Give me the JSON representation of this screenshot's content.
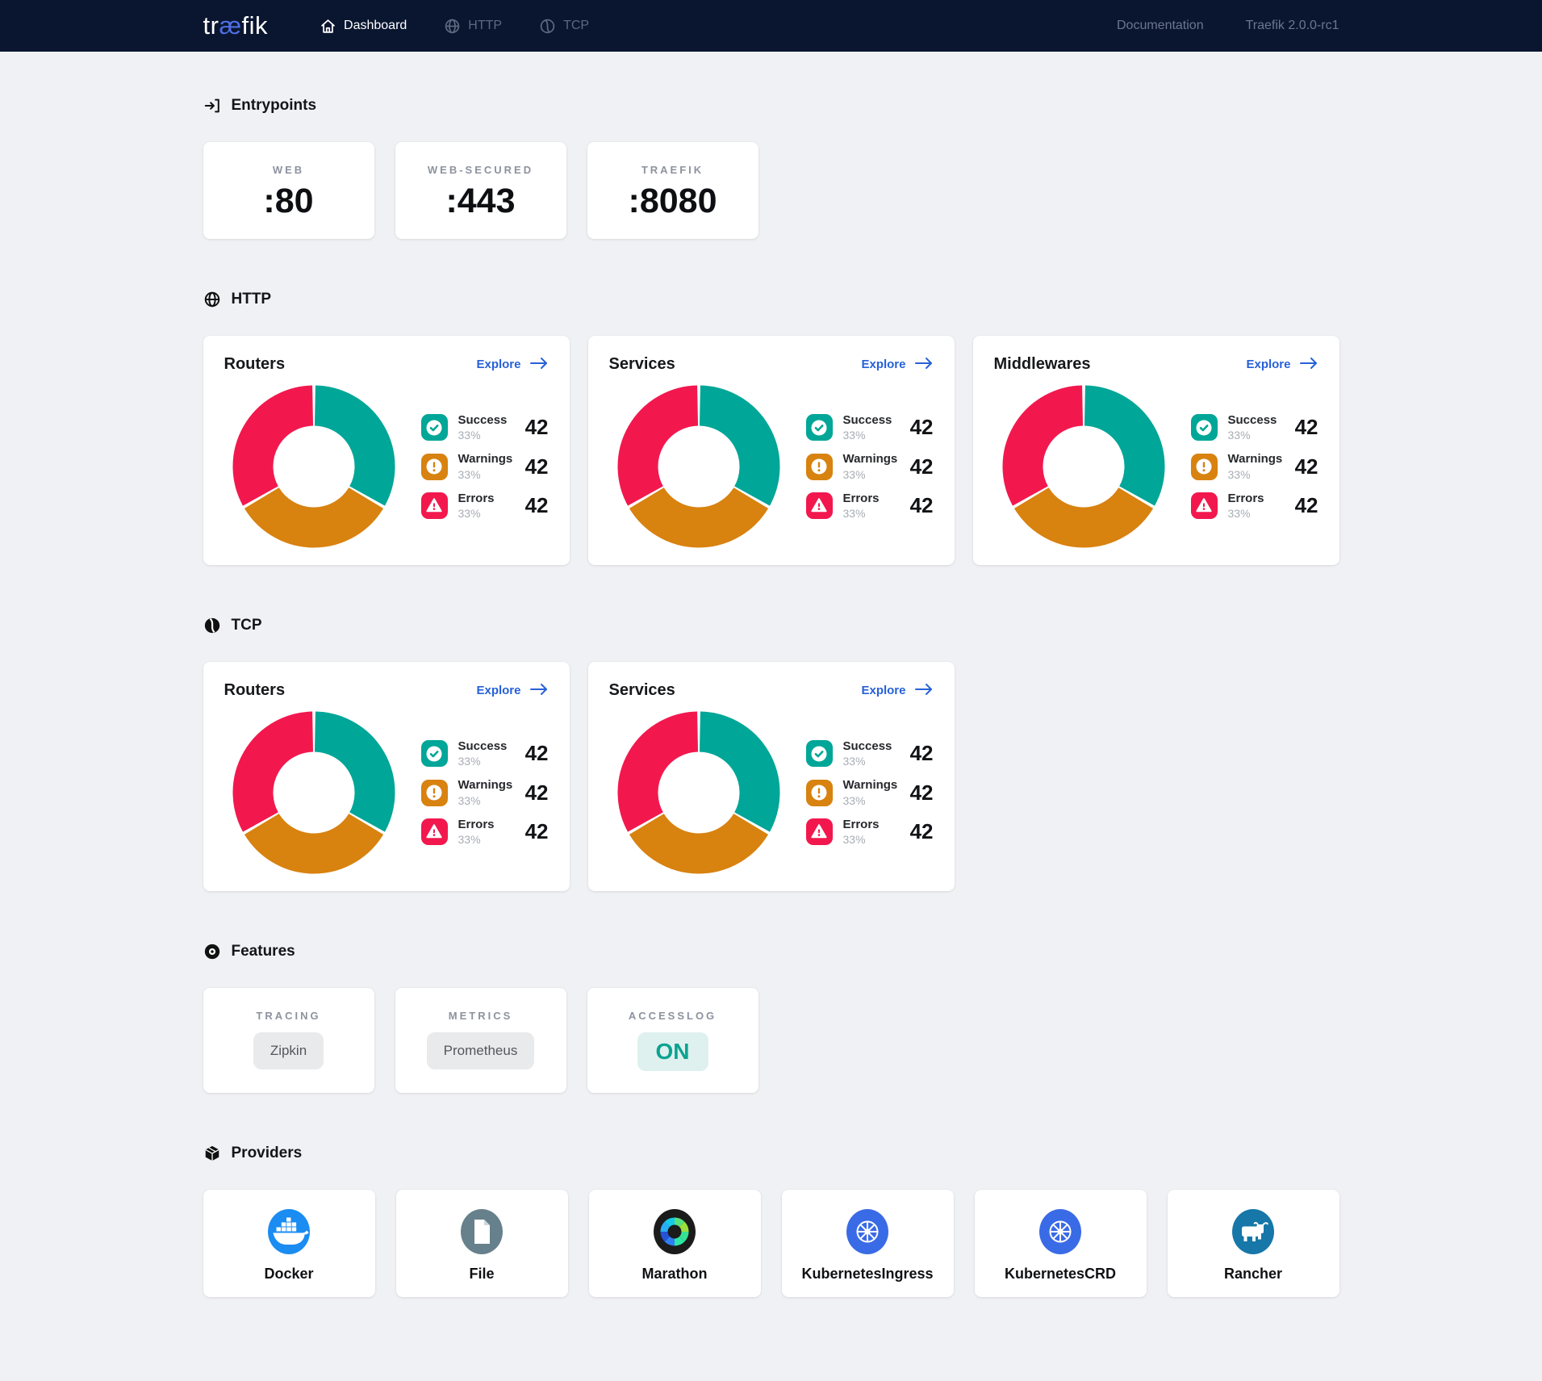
{
  "navbar": {
    "logo_pre": "tr",
    "logo_accent": "æ",
    "logo_post": "fik",
    "items": [
      {
        "label": "Dashboard",
        "icon": "home-icon",
        "active": true
      },
      {
        "label": "HTTP",
        "icon": "globe-icon",
        "active": false
      },
      {
        "label": "TCP",
        "icon": "tcp-icon",
        "active": false
      }
    ],
    "right": [
      {
        "label": "Documentation"
      },
      {
        "label": "Traefik 2.0.0-rc1"
      }
    ]
  },
  "colors": {
    "navbar_bg": "#0a1630",
    "logo_accent": "#4f6fe6",
    "accent": "#2761d8",
    "success": "#00a697",
    "warning": "#d8820f",
    "error": "#f2184e",
    "on_bg": "#def1ee",
    "on_text": "#0ba391",
    "pill_bg": "#e9eaec",
    "pill_text": "#54575d",
    "docker_blue": "#1a8cf2",
    "file_gray": "#66808c",
    "kubernetes_blue": "#3a6be6",
    "rancher_blue": "#1677a8",
    "marathon_black": "#1b1b1b"
  },
  "sections": {
    "entrypoints": {
      "heading": "Entrypoints",
      "icon": "login-icon",
      "cards": [
        {
          "label": "WEB",
          "value": ":80"
        },
        {
          "label": "WEB-SECURED",
          "value": ":443"
        },
        {
          "label": "TRAEFIK",
          "value": ":8080"
        }
      ]
    },
    "http": {
      "heading": "HTTP",
      "icon": "globe-icon"
    },
    "tcp": {
      "heading": "TCP",
      "icon": "tcp-icon"
    },
    "features": {
      "heading": "Features",
      "icon": "record-icon",
      "cards": [
        {
          "label": "TRACING",
          "value": "Zipkin",
          "style": "gray"
        },
        {
          "label": "METRICS",
          "value": "Prometheus",
          "style": "gray"
        },
        {
          "label": "ACCESSLOG",
          "value": "ON",
          "style": "teal"
        }
      ]
    },
    "providers": {
      "heading": "Providers",
      "icon": "package-icon",
      "cards": [
        {
          "name": "Docker",
          "icon": "docker-logo"
        },
        {
          "name": "File",
          "icon": "file-logo"
        },
        {
          "name": "Marathon",
          "icon": "marathon-logo"
        },
        {
          "name": "KubernetesIngress",
          "icon": "kubernetes-logo"
        },
        {
          "name": "KubernetesCRD",
          "icon": "kubernetes-logo"
        },
        {
          "name": "Rancher",
          "icon": "rancher-logo"
        }
      ]
    }
  },
  "charts": {
    "http_routers": {
      "title": "Routers",
      "explore": "Explore",
      "legend": [
        {
          "label": "Success",
          "pct": "33%",
          "count": "42"
        },
        {
          "label": "Warnings",
          "pct": "33%",
          "count": "42"
        },
        {
          "label": "Errors",
          "pct": "33%",
          "count": "42"
        }
      ]
    },
    "http_services": {
      "title": "Services",
      "explore": "Explore",
      "legend": [
        {
          "label": "Success",
          "pct": "33%",
          "count": "42"
        },
        {
          "label": "Warnings",
          "pct": "33%",
          "count": "42"
        },
        {
          "label": "Errors",
          "pct": "33%",
          "count": "42"
        }
      ]
    },
    "http_middlewares": {
      "title": "Middlewares",
      "explore": "Explore",
      "legend": [
        {
          "label": "Success",
          "pct": "33%",
          "count": "42"
        },
        {
          "label": "Warnings",
          "pct": "33%",
          "count": "42"
        },
        {
          "label": "Errors",
          "pct": "33%",
          "count": "42"
        }
      ]
    },
    "tcp_routers": {
      "title": "Routers",
      "explore": "Explore",
      "legend": [
        {
          "label": "Success",
          "pct": "33%",
          "count": "42"
        },
        {
          "label": "Warnings",
          "pct": "33%",
          "count": "42"
        },
        {
          "label": "Errors",
          "pct": "33%",
          "count": "42"
        }
      ]
    },
    "tcp_services": {
      "title": "Services",
      "explore": "Explore",
      "legend": [
        {
          "label": "Success",
          "pct": "33%",
          "count": "42"
        },
        {
          "label": "Warnings",
          "pct": "33%",
          "count": "42"
        },
        {
          "label": "Errors",
          "pct": "33%",
          "count": "42"
        }
      ]
    }
  },
  "chart_data": [
    {
      "id": "http_routers",
      "type": "pie",
      "donut": true,
      "title": "HTTP Routers",
      "labels": [
        "Success",
        "Warnings",
        "Errors"
      ],
      "values": [
        42,
        42,
        42
      ],
      "percent": [
        33,
        33,
        33
      ],
      "colors": [
        "#00a697",
        "#d8820f",
        "#f2184e"
      ],
      "start_angle_deg": -90,
      "legend_position": "right"
    },
    {
      "id": "http_services",
      "type": "pie",
      "donut": true,
      "title": "HTTP Services",
      "labels": [
        "Success",
        "Warnings",
        "Errors"
      ],
      "values": [
        42,
        42,
        42
      ],
      "percent": [
        33,
        33,
        33
      ],
      "colors": [
        "#00a697",
        "#d8820f",
        "#f2184e"
      ],
      "start_angle_deg": -90,
      "legend_position": "right"
    },
    {
      "id": "http_middlewares",
      "type": "pie",
      "donut": true,
      "title": "HTTP Middlewares",
      "labels": [
        "Success",
        "Warnings",
        "Errors"
      ],
      "values": [
        42,
        42,
        42
      ],
      "percent": [
        33,
        33,
        33
      ],
      "colors": [
        "#00a697",
        "#d8820f",
        "#f2184e"
      ],
      "start_angle_deg": -90,
      "legend_position": "right"
    },
    {
      "id": "tcp_routers",
      "type": "pie",
      "donut": true,
      "title": "TCP Routers",
      "labels": [
        "Success",
        "Warnings",
        "Errors"
      ],
      "values": [
        42,
        42,
        42
      ],
      "percent": [
        33,
        33,
        33
      ],
      "colors": [
        "#00a697",
        "#d8820f",
        "#f2184e"
      ],
      "start_angle_deg": -90,
      "legend_position": "right"
    },
    {
      "id": "tcp_services",
      "type": "pie",
      "donut": true,
      "title": "TCP Services",
      "labels": [
        "Success",
        "Warnings",
        "Errors"
      ],
      "values": [
        42,
        42,
        42
      ],
      "percent": [
        33,
        33,
        33
      ],
      "colors": [
        "#00a697",
        "#d8820f",
        "#f2184e"
      ],
      "start_angle_deg": -90,
      "legend_position": "right"
    }
  ]
}
